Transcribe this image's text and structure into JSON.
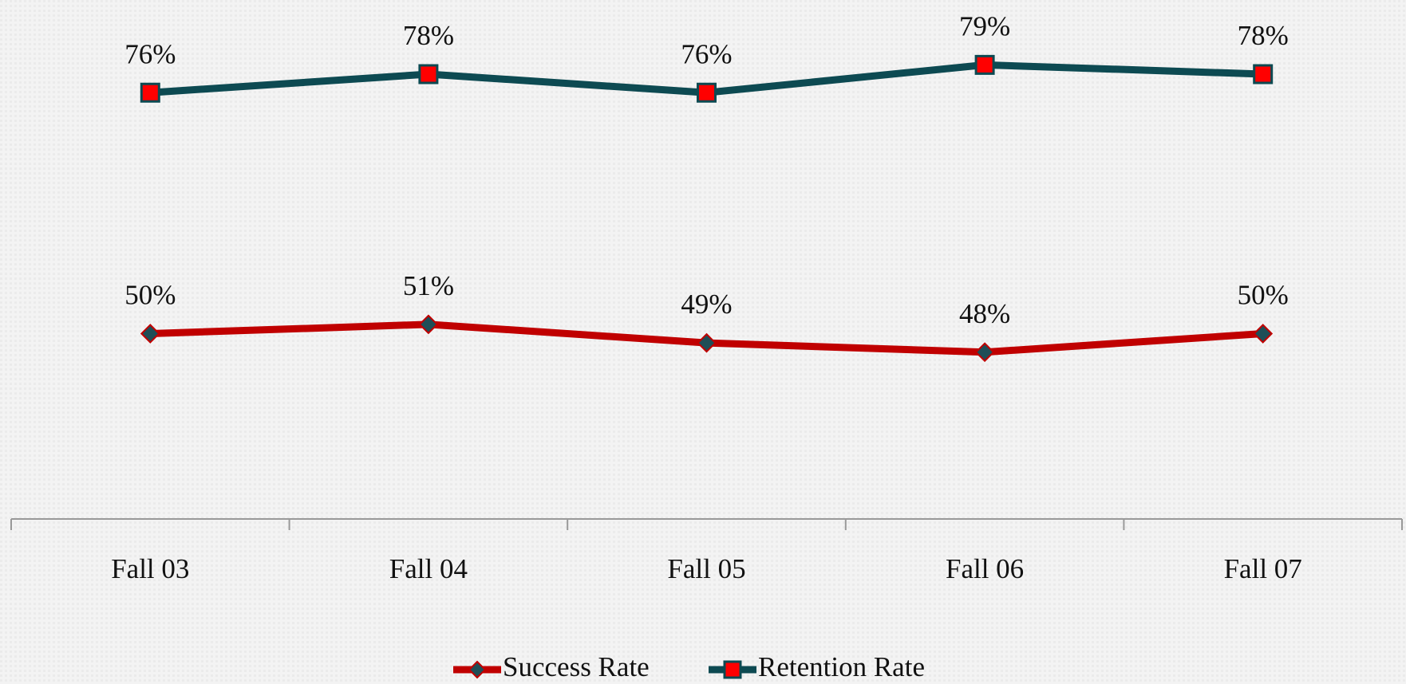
{
  "chart_data": {
    "type": "line",
    "categories": [
      "Fall 03",
      "Fall 04",
      "Fall 05",
      "Fall 06",
      "Fall 07"
    ],
    "series": [
      {
        "name": "Success Rate",
        "color": "#c00000",
        "marker": "diamond",
        "marker_color": "#1f4e57",
        "values": [
          50,
          51,
          49,
          48,
          50
        ],
        "value_labels": [
          "50%",
          "51%",
          "49%",
          "48%",
          "50%"
        ]
      },
      {
        "name": "Retention Rate",
        "color": "#0d4a52",
        "marker": "square",
        "marker_color": "#ff0000",
        "values": [
          76,
          78,
          76,
          79,
          78
        ],
        "value_labels": [
          "76%",
          "78%",
          "76%",
          "79%",
          "78%"
        ]
      }
    ],
    "ylim": [
      30,
      86
    ],
    "legend": "bottom"
  }
}
